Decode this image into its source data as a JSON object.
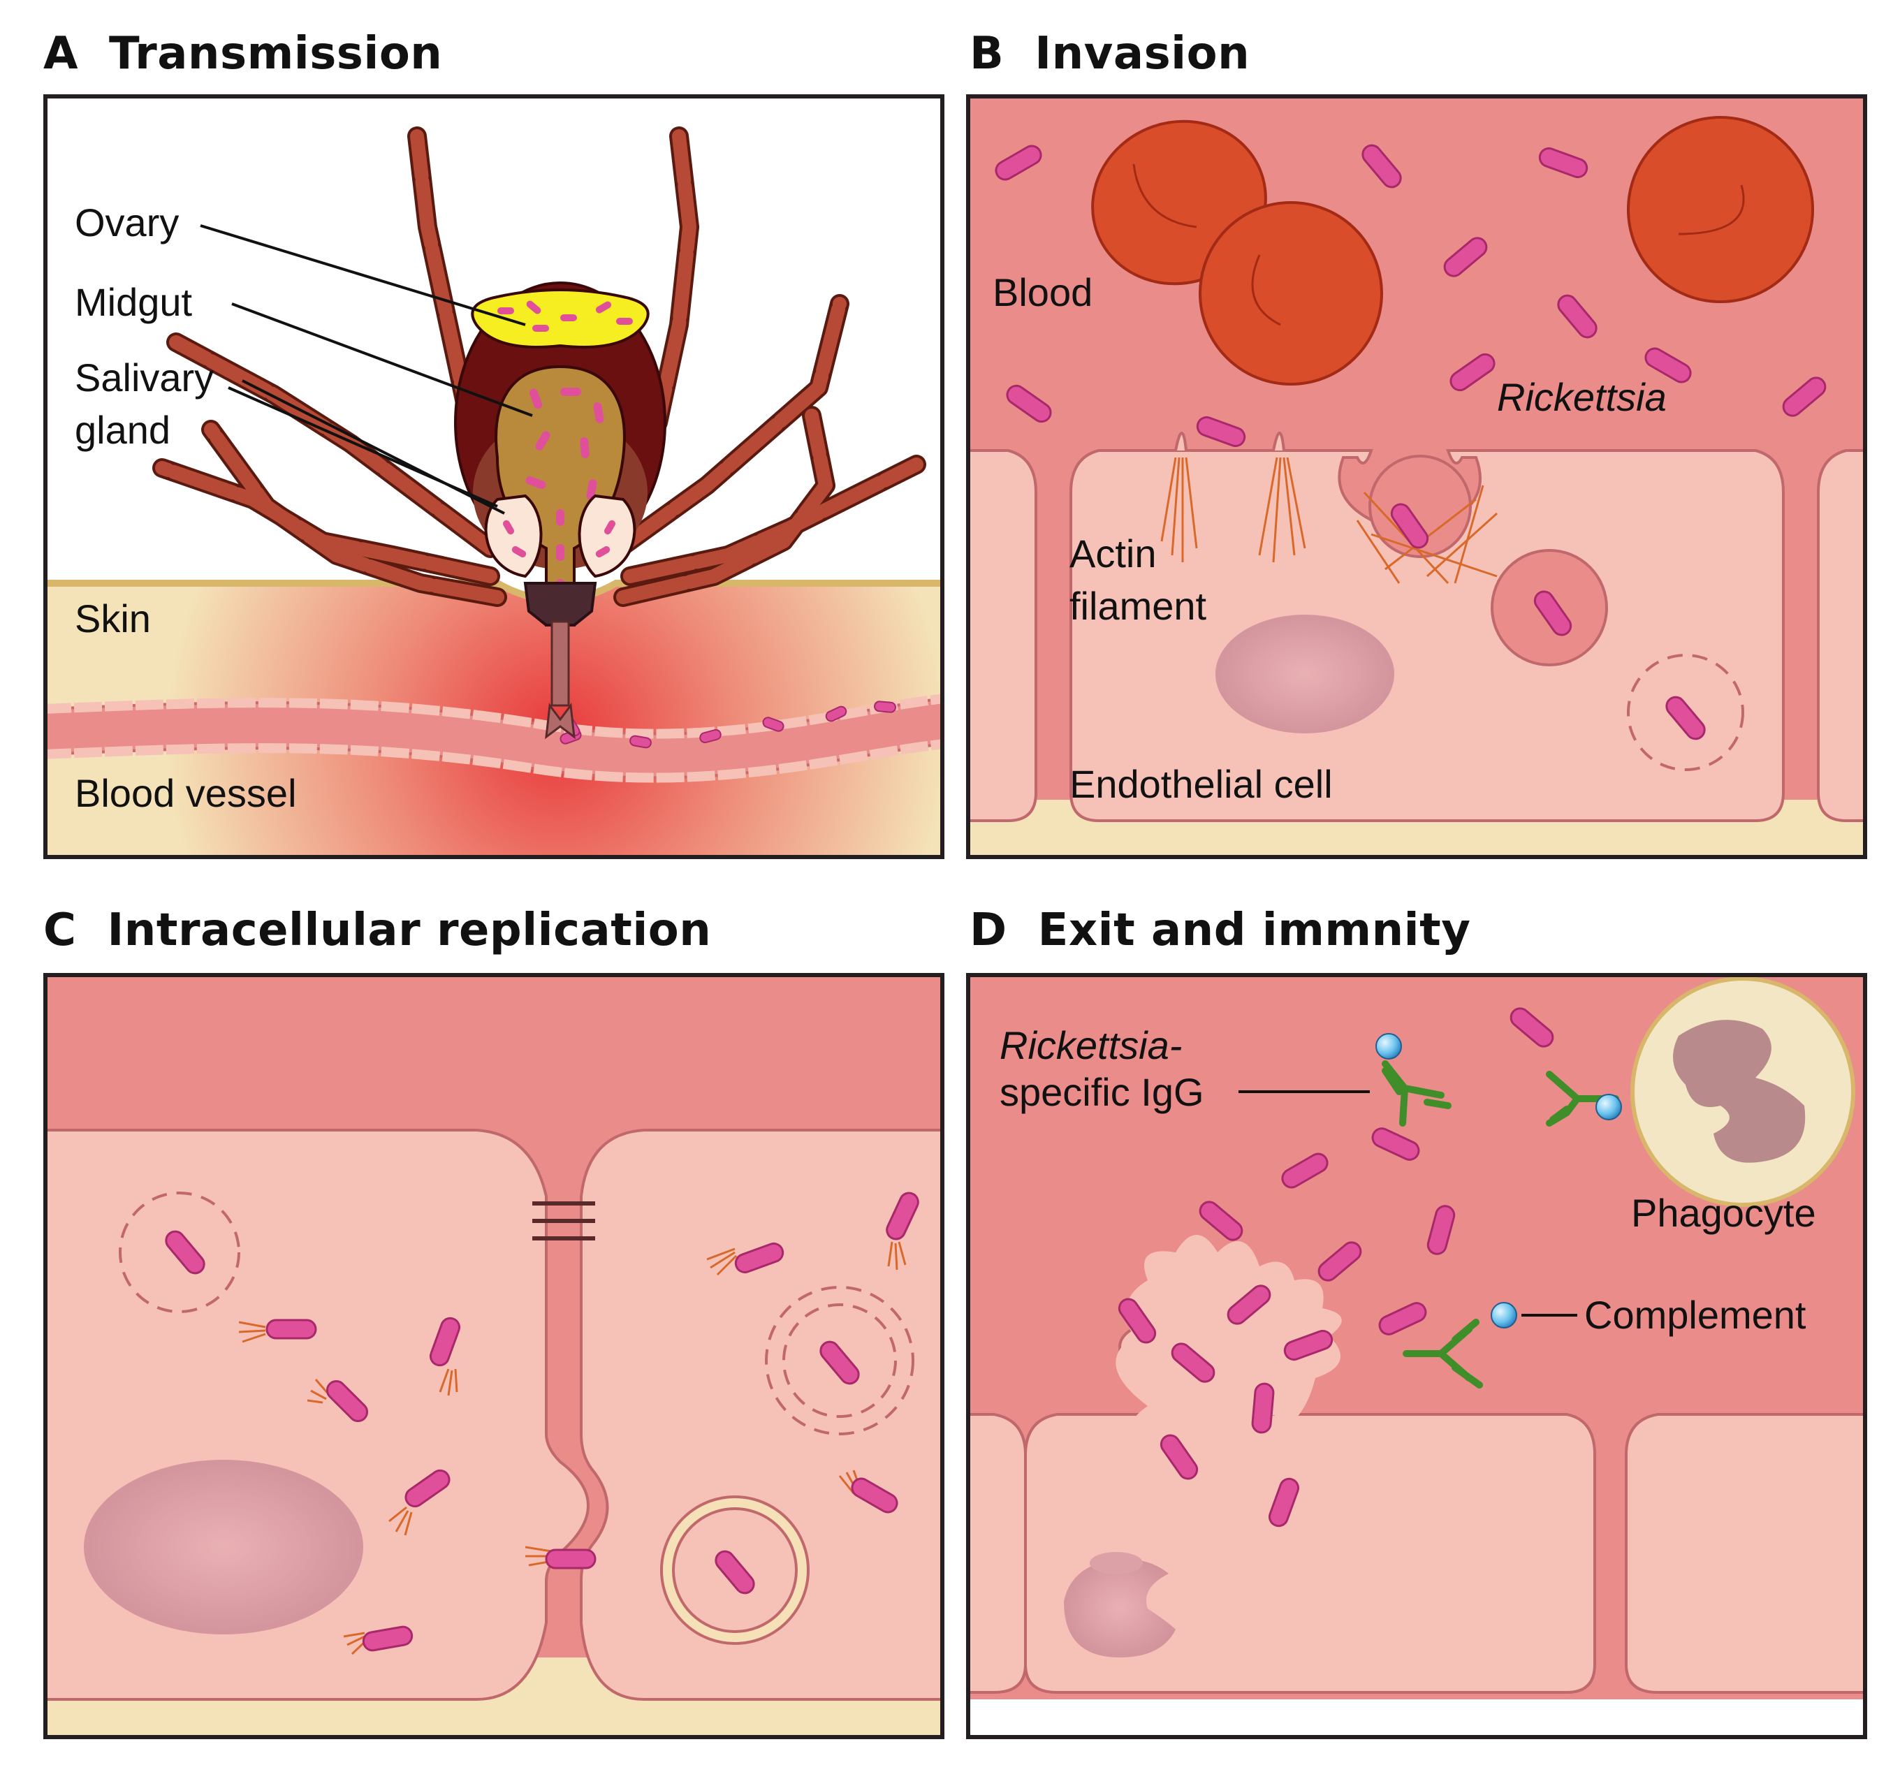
{
  "panels": {
    "a": {
      "letter": "A",
      "title": "Transmission",
      "labels": {
        "ovary": "Ovary",
        "midgut": "Midgut",
        "salivary1": "Salivary",
        "salivary2": "gland",
        "skin": "Skin",
        "vessel": "Blood vessel"
      }
    },
    "b": {
      "letter": "B",
      "title": "Invasion",
      "labels": {
        "blood": "Blood",
        "rickettsia": "Rickettsia",
        "actin1": "Actin",
        "actin2": "filament",
        "endo": "Endothelial cell"
      }
    },
    "c": {
      "letter": "C",
      "title": "Intracellular replication"
    },
    "d": {
      "letter": "D",
      "title": "Exit and immnity",
      "labels": {
        "igg1": "Rickettsia-",
        "igg2": "specific IgG",
        "phagocyte": "Phagocyte",
        "complement": "Complement"
      }
    }
  },
  "colors": {
    "blood": "#e98c8a",
    "cell": "#f6c2b8",
    "skin": "#f4e3b8",
    "rbc": "#d94d2a",
    "rickettsia": "#e0509a",
    "nucleus": "#cf8f98",
    "actin": "#d9692a",
    "antibody": "#3f8e2a",
    "complement": "#6cc4ee",
    "tick_body": "#6a1010",
    "tick_leg": "#b64a36",
    "ovary": "#f7ee22",
    "midgut": "#b98a3c"
  }
}
